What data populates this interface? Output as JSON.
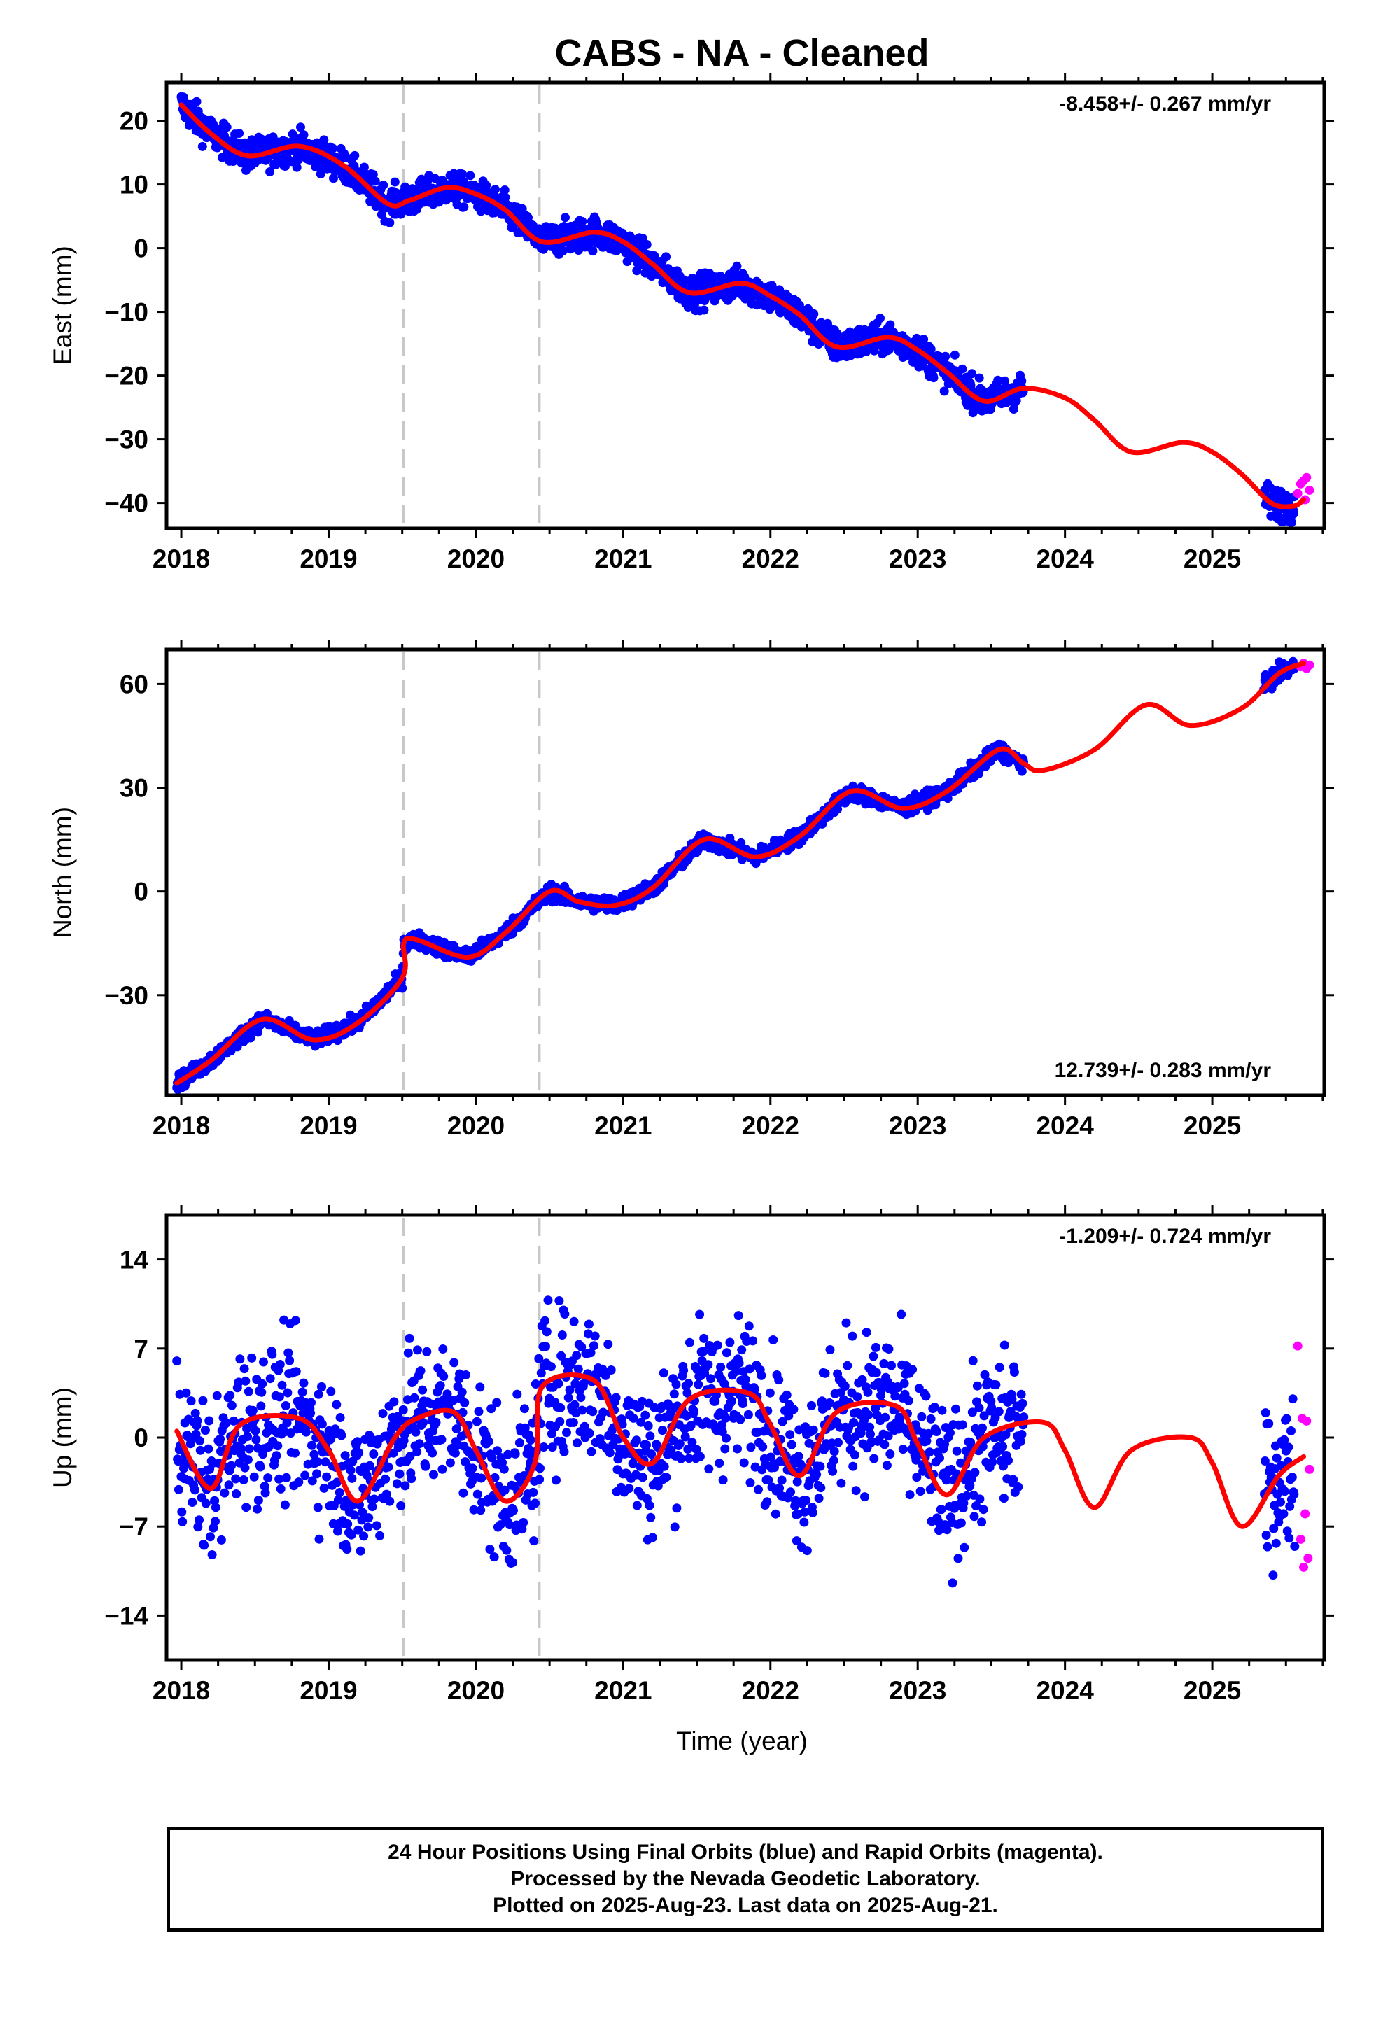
{
  "title": "CABS  - NA - Cleaned",
  "x_axis_label": "Time (year)",
  "x_ticks": [
    2018,
    2019,
    2020,
    2021,
    2022,
    2023,
    2024,
    2025
  ],
  "xlim": [
    2017.9,
    2025.76
  ],
  "event_lines_year": [
    2019.51,
    2020.43
  ],
  "colors": {
    "final_orbits": "#0000ff",
    "rapid_orbits": "#ff00ff",
    "model": "#ff0000",
    "event_line": "#c8c8c8"
  },
  "footer": [
    "24 Hour Positions Using Final Orbits (blue) and Rapid Orbits (magenta).",
    "Processed by the Nevada Geodetic Laboratory.",
    "Plotted on 2025-Aug-23. Last data on 2025-Aug-21."
  ],
  "chart_data": [
    {
      "type": "scatter",
      "component": "East",
      "ylabel": "East (mm)",
      "rate_label": "-8.458+/- 0.267 mm/yr",
      "rate_position": "top-right",
      "ylim": [
        -44,
        26
      ],
      "yticks": [
        20,
        10,
        0,
        -10,
        -20,
        -30,
        -40
      ],
      "data_gap": [
        2023.72,
        2025.35
      ],
      "model": {
        "x": [
          2018.0,
          2018.2,
          2018.45,
          2018.8,
          2019.1,
          2019.4,
          2019.55,
          2019.8,
          2020.0,
          2020.2,
          2020.45,
          2020.8,
          2021.0,
          2021.2,
          2021.45,
          2021.8,
          2022.0,
          2022.2,
          2022.45,
          2022.8,
          2023.0,
          2023.2,
          2023.45,
          2023.72,
          2024.0,
          2024.2,
          2024.45,
          2024.8,
          2025.0,
          2025.2,
          2025.4,
          2025.55,
          2025.62
        ],
        "y": [
          22.5,
          18,
          14.5,
          16,
          13,
          7,
          7.5,
          9.5,
          8.5,
          6,
          1,
          2.5,
          1,
          -2.5,
          -7,
          -5.5,
          -7.5,
          -10.5,
          -15.5,
          -14,
          -16,
          -19.5,
          -24,
          -22,
          -23.5,
          -27,
          -32,
          -30.5,
          -32,
          -35.5,
          -40,
          -40.5,
          -39.5
        ]
      },
      "final_orbit_wiggle": 1.8,
      "rapid_orbits": {
        "x": [
          2025.58,
          2025.6,
          2025.62,
          2025.63,
          2025.64,
          2025.66
        ],
        "y": [
          -38.5,
          -37,
          -36.5,
          -39.5,
          -36,
          -38
        ]
      }
    },
    {
      "type": "scatter",
      "component": "North",
      "ylabel": "North (mm)",
      "rate_label": "12.739+/- 0.283 mm/yr",
      "rate_position": "bottom-right",
      "ylim": [
        -59,
        70
      ],
      "yticks": [
        60,
        30,
        0,
        -30
      ],
      "data_gap": [
        2023.72,
        2025.35
      ],
      "model": {
        "x": [
          2017.97,
          2018.2,
          2018.55,
          2018.9,
          2019.2,
          2019.5,
          2019.51,
          2019.6,
          2019.95,
          2020.2,
          2020.5,
          2020.7,
          2020.95,
          2021.2,
          2021.55,
          2021.9,
          2022.2,
          2022.55,
          2022.9,
          2023.2,
          2023.55,
          2023.72,
          2023.85,
          2024.2,
          2024.55,
          2024.85,
          2025.2,
          2025.45,
          2025.62
        ],
        "y": [
          -55.5,
          -49,
          -37,
          -43,
          -38,
          -25,
          -15,
          -14,
          -19,
          -12,
          0,
          -3,
          -4,
          1,
          15,
          10,
          16,
          29,
          24,
          29,
          41,
          37,
          35,
          41,
          54,
          48,
          53,
          63,
          66
        ]
      },
      "final_orbit_wiggle": 1.6,
      "rapid_orbits": {
        "x": [
          2025.6,
          2025.62,
          2025.64,
          2025.66
        ],
        "y": [
          65,
          66,
          64.5,
          65.5
        ]
      }
    },
    {
      "type": "scatter",
      "component": "Up",
      "ylabel": "Up (mm)",
      "rate_label": "-1.209+/- 0.724 mm/yr",
      "rate_position": "top-right",
      "ylim": [
        -17.5,
        17.5
      ],
      "yticks": [
        14,
        7,
        0,
        -7,
        -14
      ],
      "data_gap": [
        2023.72,
        2025.35
      ],
      "model": {
        "x": [
          2017.97,
          2018.2,
          2018.4,
          2018.8,
          2019.0,
          2019.2,
          2019.45,
          2019.6,
          2019.85,
          2020.0,
          2020.2,
          2020.4,
          2020.45,
          2020.8,
          2021.0,
          2021.2,
          2021.45,
          2021.85,
          2022.0,
          2022.2,
          2022.45,
          2022.85,
          2023.0,
          2023.2,
          2023.45,
          2023.85,
          2024.0,
          2024.2,
          2024.45,
          2024.85,
          2025.0,
          2025.2,
          2025.45,
          2025.62
        ],
        "y": [
          0.5,
          -4,
          1,
          1.5,
          -1,
          -5,
          0,
          1.5,
          2,
          -1,
          -5,
          -2,
          4,
          4.5,
          0,
          -2,
          3,
          3.5,
          1,
          -3,
          2,
          2.5,
          -0.5,
          -4.5,
          0,
          1.2,
          -1,
          -5.5,
          -1,
          0,
          -2,
          -7,
          -3,
          -1.5
        ]
      },
      "final_orbit_wiggle": 4.2,
      "rapid_orbits": {
        "x": [
          2025.58,
          2025.6,
          2025.61,
          2025.62,
          2025.63,
          2025.64,
          2025.65,
          2025.66
        ],
        "y": [
          7.2,
          -8,
          1.5,
          -10.2,
          -6,
          1.3,
          -9.5,
          -2.5
        ]
      }
    }
  ]
}
